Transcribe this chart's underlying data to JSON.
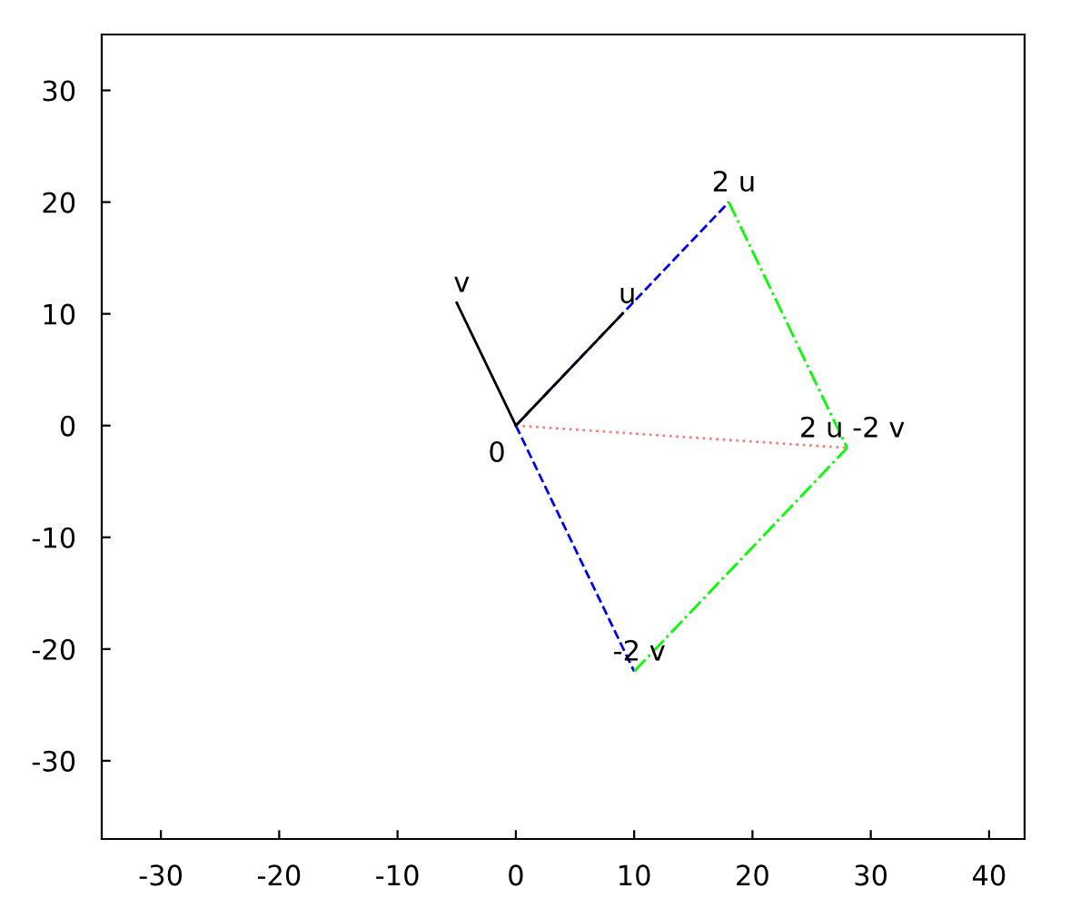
{
  "chart_data": {
    "type": "line",
    "xlim": [
      -35,
      43
    ],
    "ylim": [
      -37,
      35
    ],
    "xticks": [
      -30,
      -20,
      -10,
      0,
      10,
      20,
      30,
      40
    ],
    "yticks": [
      -30,
      -20,
      -10,
      0,
      10,
      20,
      30
    ],
    "grid": false,
    "legend": false,
    "marker": "none",
    "series": [
      {
        "color": "#0000ff",
        "line_style": "dashed",
        "x": [
          0,
          18
        ],
        "values": [
          0,
          20
        ]
      },
      {
        "color": "#0000ff",
        "line_style": "dashed",
        "x": [
          0,
          10
        ],
        "values": [
          0,
          -22
        ]
      },
      {
        "color": "#00ff00",
        "line_style": "dashdot",
        "x": [
          18,
          28
        ],
        "values": [
          20,
          -2
        ]
      },
      {
        "color": "#00ff00",
        "line_style": "dashdot",
        "x": [
          10,
          28
        ],
        "values": [
          -22,
          -2
        ]
      },
      {
        "color": "#ff8080",
        "line_style": "dotted",
        "x": [
          0,
          28
        ],
        "values": [
          0,
          -2
        ]
      },
      {
        "color": "#000000",
        "line_style": "solid",
        "x": [
          0,
          9
        ],
        "values": [
          0,
          10
        ]
      },
      {
        "color": "#000000",
        "line_style": "solid",
        "x": [
          0,
          -5
        ],
        "values": [
          0,
          11
        ]
      }
    ],
    "annotations": [
      {
        "text": "u",
        "x": 9,
        "y": 10
      },
      {
        "text": "v",
        "x": -5,
        "y": 11
      },
      {
        "text": "2 u",
        "x": 18,
        "y": 20
      },
      {
        "text": "-2 v",
        "x": 10,
        "y": -22
      },
      {
        "text": "2 u -2 v",
        "x": 28,
        "y": -2
      },
      {
        "text": "0",
        "x": 0,
        "y": 0
      }
    ]
  }
}
